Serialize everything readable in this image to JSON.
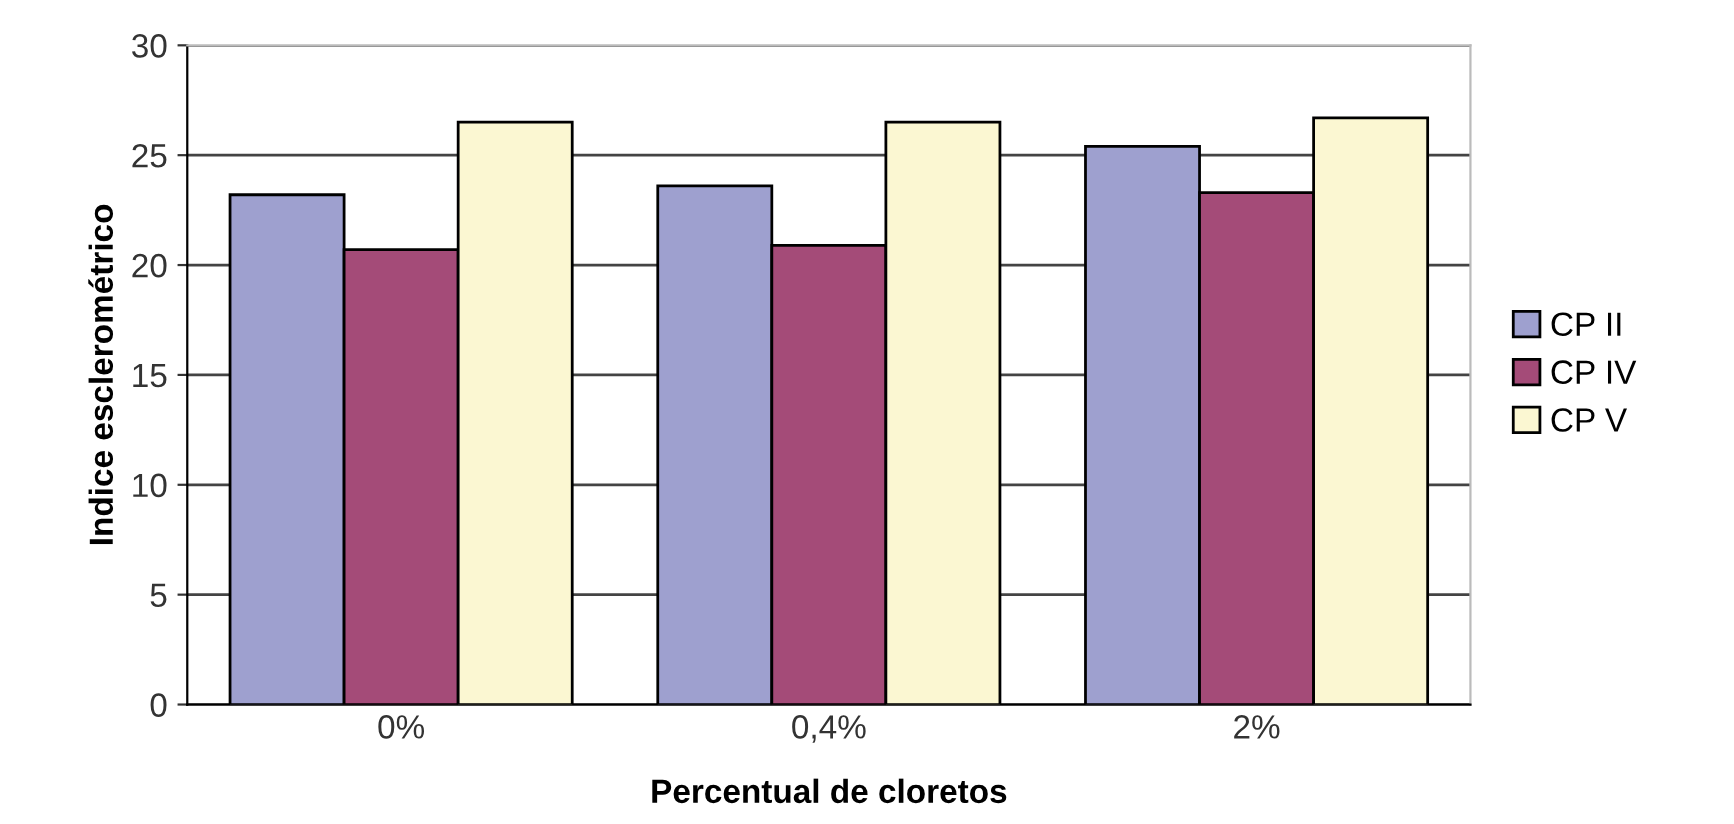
{
  "chart_data": {
    "type": "bar",
    "xlabel": "Percentual de cloretos",
    "ylabel": "Indice esclerométrico",
    "categories": [
      "0%",
      "0,4%",
      "2%"
    ],
    "series": [
      {
        "name": "CP II",
        "color": "#9ea0cf",
        "values": [
          23.2,
          23.6,
          25.4
        ]
      },
      {
        "name": "CP IV",
        "color": "#a44b78",
        "values": [
          20.7,
          20.9,
          23.3
        ]
      },
      {
        "name": "CP V",
        "color": "#fbf7d2",
        "values": [
          26.5,
          26.5,
          26.7
        ]
      }
    ],
    "ylim": [
      0,
      30
    ],
    "yticks": [
      0,
      5,
      10,
      15,
      20,
      25,
      30
    ],
    "grid": "y",
    "legend": "right"
  }
}
